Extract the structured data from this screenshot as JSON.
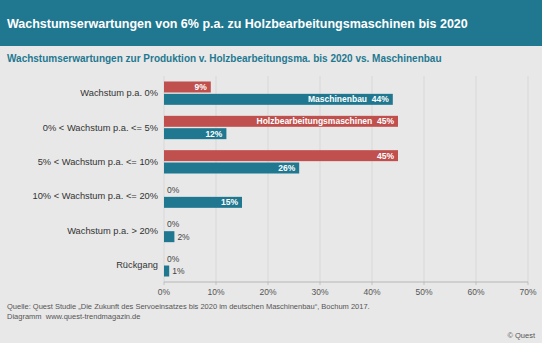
{
  "chart_data": {
    "type": "bar",
    "orientation": "horizontal",
    "title": "Wachstumserwartungen von 6% p.a. zu Holzbearbeitungsmaschinen bis 2020",
    "subtitle": "Wachstumserwartungen zur Produktion v. Holzbearbeitungsma. bis 2020 vs. Maschinenbau",
    "categories": [
      "Wachstum p.a. 0%",
      "0% < Wachstum p.a. <= 5%",
      "5% < Wachstum p.a. <= 10%",
      "10% < Wachstum p.a. <= 20%",
      "Wachstum p.a. > 20%",
      "Rückgang"
    ],
    "series": [
      {
        "name": "Holzbearbeitungsmaschinen",
        "color": "#c0504d",
        "values": [
          9,
          45,
          45,
          0,
          0,
          0
        ],
        "value_labels": [
          "9%",
          "45%",
          "45%",
          "0%",
          "0%",
          "0%"
        ]
      },
      {
        "name": "Maschinenbau",
        "color": "#1f7890",
        "values": [
          44,
          12,
          26,
          15,
          2,
          1
        ],
        "value_labels": [
          "44%",
          "12%",
          "26%",
          "15%",
          "2%",
          "1%"
        ]
      }
    ],
    "xlim": [
      0,
      70
    ],
    "xticks": [
      {
        "value": 0,
        "label": "0%"
      },
      {
        "value": 10,
        "label": "10%"
      },
      {
        "value": 20,
        "label": "20%"
      },
      {
        "value": 30,
        "label": "30%"
      },
      {
        "value": 40,
        "label": "40%"
      },
      {
        "value": 50,
        "label": "50%"
      },
      {
        "value": 60,
        "label": "60%"
      },
      {
        "value": 70,
        "label": "70%"
      }
    ],
    "grid": true,
    "data_labels": true,
    "annotations": [
      "Quelle: Quest Studie „Die Zukunft des Servoeinsatzes bis 2020 im deutschen Maschinenbau“, Bochum 2017.",
      "Diagramm  www.quest-trendmagazin.de",
      "© Quest"
    ]
  }
}
